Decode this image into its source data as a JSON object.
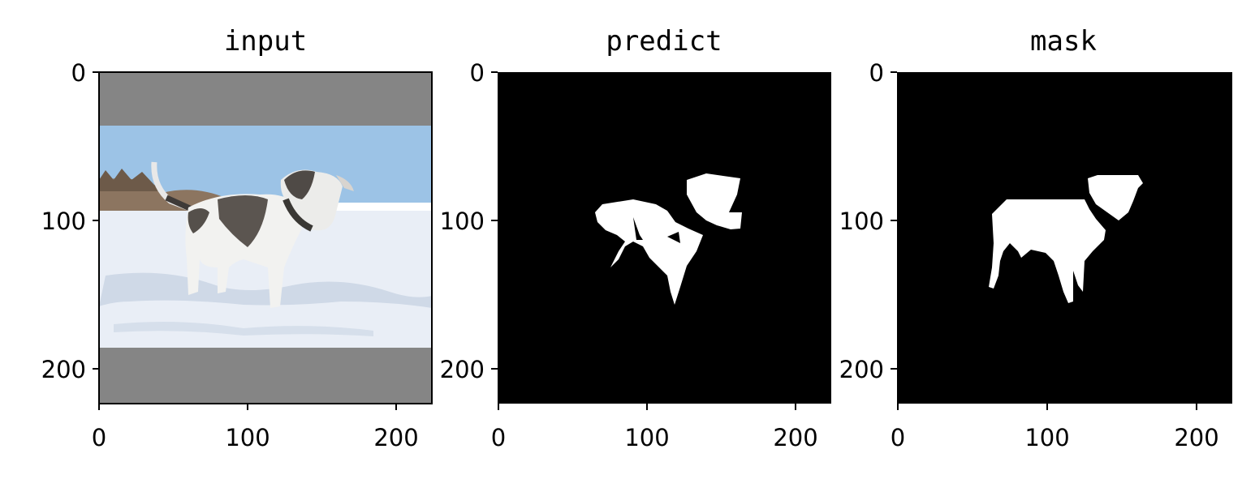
{
  "panels": [
    {
      "title": "input"
    },
    {
      "title": "predict"
    },
    {
      "title": "mask"
    }
  ],
  "chart_data": [
    {
      "type": "image",
      "title": "input",
      "xlim": [
        0,
        224
      ],
      "ylim": [
        224,
        0
      ],
      "xticks": [
        0,
        100,
        200
      ],
      "yticks": [
        0,
        100,
        200
      ],
      "xtick_labels": [
        "0",
        "100",
        "200"
      ],
      "ytick_labels": [
        "0",
        "100",
        "200"
      ],
      "content": "letterboxed photo of a dog standing in snow",
      "letterbox_rows": [
        [
          0,
          36
        ],
        [
          186,
          224
        ]
      ],
      "colors": {
        "pad": "#858585",
        "sky": "#9cc3e6",
        "snow": "#e9eef6"
      }
    },
    {
      "type": "image",
      "title": "predict",
      "xlim": [
        0,
        224
      ],
      "ylim": [
        224,
        0
      ],
      "xticks": [
        0,
        100,
        200
      ],
      "yticks": [
        0,
        100,
        200
      ],
      "xtick_labels": [
        "0",
        "100",
        "200"
      ],
      "ytick_labels": [
        "0",
        "100",
        "200"
      ],
      "content": "binary segmentation prediction (white on black)",
      "colors": {
        "bg": "#000000",
        "fg": "#ffffff"
      }
    },
    {
      "type": "image",
      "title": "mask",
      "xlim": [
        0,
        224
      ],
      "ylim": [
        224,
        0
      ],
      "xticks": [
        0,
        100,
        200
      ],
      "yticks": [
        0,
        100,
        200
      ],
      "xtick_labels": [
        "0",
        "100",
        "200"
      ],
      "ytick_labels": [
        "0",
        "100",
        "200"
      ],
      "content": "binary ground-truth mask (white on black)",
      "colors": {
        "bg": "#000000",
        "fg": "#ffffff"
      }
    }
  ]
}
